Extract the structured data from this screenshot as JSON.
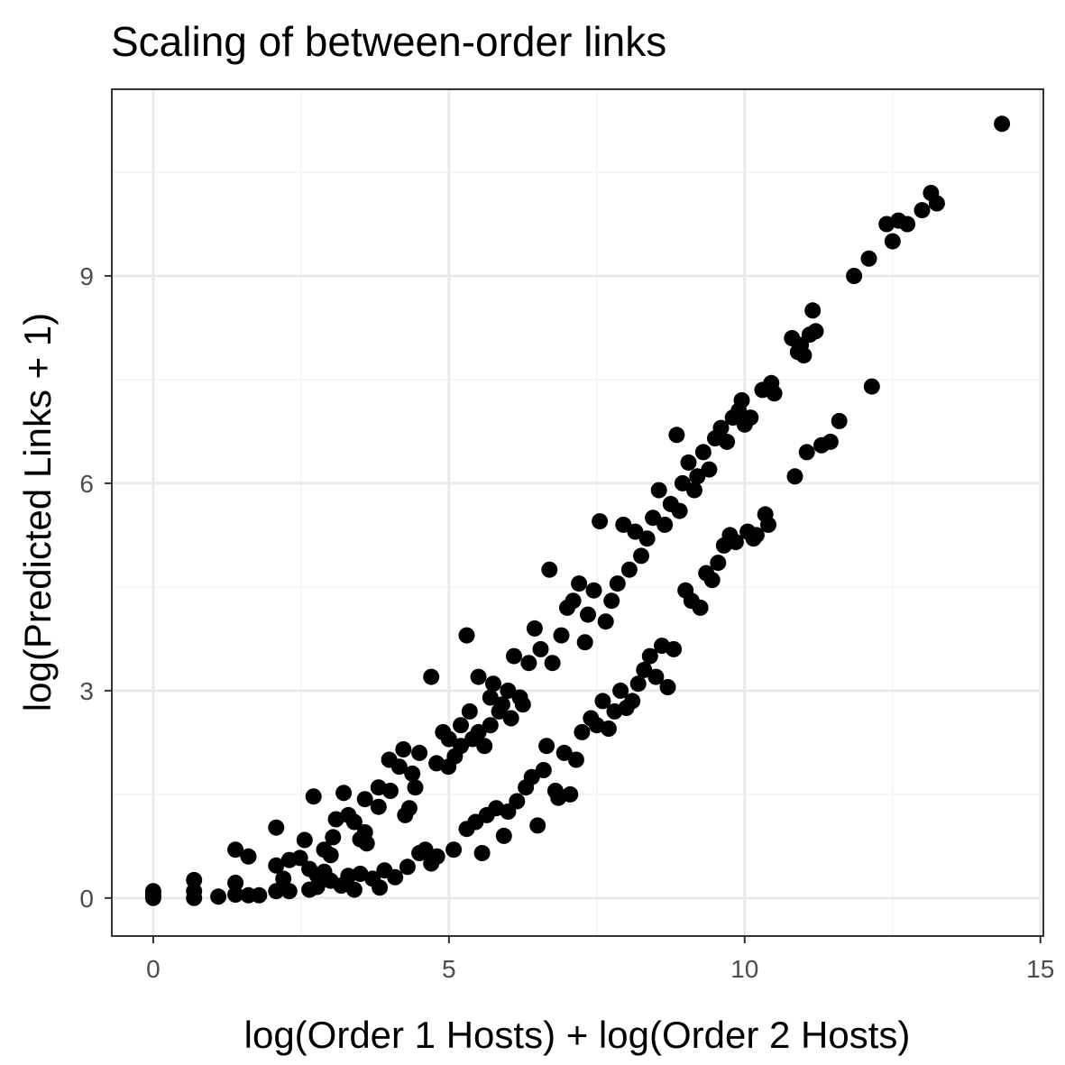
{
  "chart_data": {
    "type": "scatter",
    "title": "Scaling of between-order links",
    "xlabel": "log(Order 1 Hosts) + log(Order 2 Hosts)",
    "ylabel": "log(Predicted Links + 1)",
    "xlim": [
      -0.7,
      15.05
    ],
    "ylim": [
      -0.55,
      11.7
    ],
    "x_ticks": [
      0,
      5,
      10,
      15
    ],
    "x_tick_labels": [
      "0",
      "5",
      "10",
      "15"
    ],
    "y_ticks": [
      0,
      3,
      6,
      9
    ],
    "y_tick_labels": [
      "0",
      "3",
      "6",
      "9"
    ],
    "x_minor_grid": [
      2.5,
      7.5,
      12.5
    ],
    "y_minor_grid": [
      1.5,
      4.5,
      7.5,
      10.5
    ],
    "grid": true,
    "legend": "none",
    "colors": {
      "point": "#000000",
      "grid_major": "#ebebeb",
      "grid_minor": "#f5f5f5",
      "panel_border": "#333333",
      "tick_label": "#4d4d4d"
    },
    "points": [
      [
        0.0,
        0.0
      ],
      [
        0.0,
        0.1
      ],
      [
        0.0,
        0.05
      ],
      [
        0.69,
        0.0
      ],
      [
        0.69,
        0.1
      ],
      [
        0.69,
        0.26
      ],
      [
        1.1,
        0.02
      ],
      [
        1.39,
        0.05
      ],
      [
        1.39,
        0.22
      ],
      [
        1.39,
        0.7
      ],
      [
        1.61,
        0.6
      ],
      [
        1.61,
        0.04
      ],
      [
        1.79,
        0.04
      ],
      [
        2.08,
        0.1
      ],
      [
        2.08,
        0.47
      ],
      [
        2.08,
        1.02
      ],
      [
        2.2,
        0.28
      ],
      [
        2.3,
        0.55
      ],
      [
        2.3,
        0.1
      ],
      [
        2.48,
        0.58
      ],
      [
        2.56,
        0.84
      ],
      [
        2.64,
        0.42
      ],
      [
        2.64,
        0.12
      ],
      [
        2.71,
        1.47
      ],
      [
        2.77,
        0.16
      ],
      [
        2.77,
        0.33
      ],
      [
        2.89,
        0.7
      ],
      [
        2.89,
        0.38
      ],
      [
        3.0,
        0.62
      ],
      [
        3.0,
        0.25
      ],
      [
        3.04,
        0.88
      ],
      [
        3.09,
        1.14
      ],
      [
        3.18,
        0.18
      ],
      [
        3.22,
        1.52
      ],
      [
        3.3,
        1.2
      ],
      [
        3.3,
        0.32
      ],
      [
        3.4,
        1.1
      ],
      [
        3.4,
        0.12
      ],
      [
        3.5,
        0.85
      ],
      [
        3.5,
        0.35
      ],
      [
        3.58,
        1.43
      ],
      [
        3.58,
        0.95
      ],
      [
        3.61,
        0.79
      ],
      [
        3.71,
        0.28
      ],
      [
        3.81,
        1.32
      ],
      [
        3.81,
        1.6
      ],
      [
        3.83,
        0.15
      ],
      [
        3.91,
        0.4
      ],
      [
        3.99,
        2.0
      ],
      [
        4.01,
        1.55
      ],
      [
        4.09,
        0.3
      ],
      [
        4.16,
        1.9
      ],
      [
        4.23,
        2.15
      ],
      [
        4.26,
        1.2
      ],
      [
        4.3,
        0.45
      ],
      [
        4.33,
        1.3
      ],
      [
        4.38,
        1.8
      ],
      [
        4.43,
        1.6
      ],
      [
        4.5,
        2.1
      ],
      [
        4.5,
        0.65
      ],
      [
        4.6,
        0.7
      ],
      [
        4.7,
        3.2
      ],
      [
        4.7,
        0.5
      ],
      [
        4.79,
        1.95
      ],
      [
        4.8,
        0.6
      ],
      [
        4.9,
        2.4
      ],
      [
        4.99,
        1.9
      ],
      [
        5.0,
        2.3
      ],
      [
        5.08,
        0.7
      ],
      [
        5.1,
        2.05
      ],
      [
        5.2,
        2.5
      ],
      [
        5.2,
        2.2
      ],
      [
        5.3,
        3.8
      ],
      [
        5.3,
        1.0
      ],
      [
        5.35,
        2.7
      ],
      [
        5.4,
        2.3
      ],
      [
        5.45,
        1.1
      ],
      [
        5.5,
        3.2
      ],
      [
        5.5,
        2.4
      ],
      [
        5.56,
        0.65
      ],
      [
        5.6,
        2.2
      ],
      [
        5.64,
        1.2
      ],
      [
        5.7,
        2.9
      ],
      [
        5.7,
        2.5
      ],
      [
        5.75,
        3.1
      ],
      [
        5.8,
        1.3
      ],
      [
        5.85,
        2.7
      ],
      [
        5.9,
        2.8
      ],
      [
        5.93,
        0.9
      ],
      [
        6.0,
        3.0
      ],
      [
        6.0,
        1.25
      ],
      [
        6.05,
        2.6
      ],
      [
        6.1,
        3.5
      ],
      [
        6.15,
        1.4
      ],
      [
        6.2,
        2.9
      ],
      [
        6.25,
        2.8
      ],
      [
        6.3,
        1.6
      ],
      [
        6.35,
        3.4
      ],
      [
        6.4,
        1.75
      ],
      [
        6.45,
        3.9
      ],
      [
        6.5,
        1.05
      ],
      [
        6.55,
        3.6
      ],
      [
        6.6,
        1.85
      ],
      [
        6.65,
        2.2
      ],
      [
        6.7,
        4.75
      ],
      [
        6.75,
        3.4
      ],
      [
        6.8,
        1.55
      ],
      [
        6.85,
        1.45
      ],
      [
        6.9,
        3.8
      ],
      [
        6.95,
        2.1
      ],
      [
        7.0,
        4.2
      ],
      [
        7.05,
        1.5
      ],
      [
        7.1,
        4.3
      ],
      [
        7.15,
        2.0
      ],
      [
        7.2,
        4.55
      ],
      [
        7.25,
        2.4
      ],
      [
        7.3,
        3.7
      ],
      [
        7.35,
        4.1
      ],
      [
        7.4,
        2.6
      ],
      [
        7.45,
        4.45
      ],
      [
        7.5,
        2.5
      ],
      [
        7.55,
        5.45
      ],
      [
        7.6,
        2.85
      ],
      [
        7.65,
        4.0
      ],
      [
        7.7,
        2.45
      ],
      [
        7.75,
        4.3
      ],
      [
        7.8,
        2.7
      ],
      [
        7.85,
        4.55
      ],
      [
        7.9,
        3.0
      ],
      [
        7.95,
        5.4
      ],
      [
        8.0,
        2.75
      ],
      [
        8.05,
        4.75
      ],
      [
        8.1,
        2.85
      ],
      [
        8.15,
        5.3
      ],
      [
        8.2,
        3.1
      ],
      [
        8.25,
        4.95
      ],
      [
        8.3,
        3.3
      ],
      [
        8.35,
        5.2
      ],
      [
        8.4,
        3.5
      ],
      [
        8.45,
        5.5
      ],
      [
        8.5,
        3.2
      ],
      [
        8.55,
        5.9
      ],
      [
        8.6,
        3.65
      ],
      [
        8.65,
        5.4
      ],
      [
        8.7,
        3.05
      ],
      [
        8.75,
        5.7
      ],
      [
        8.8,
        3.6
      ],
      [
        8.85,
        6.7
      ],
      [
        8.9,
        5.6
      ],
      [
        8.95,
        6.0
      ],
      [
        9.0,
        4.45
      ],
      [
        9.05,
        6.3
      ],
      [
        9.1,
        4.3
      ],
      [
        9.15,
        5.9
      ],
      [
        9.2,
        6.1
      ],
      [
        9.25,
        4.2
      ],
      [
        9.3,
        6.45
      ],
      [
        9.35,
        4.7
      ],
      [
        9.4,
        6.2
      ],
      [
        9.45,
        4.6
      ],
      [
        9.5,
        6.65
      ],
      [
        9.55,
        4.85
      ],
      [
        9.6,
        6.8
      ],
      [
        9.65,
        5.1
      ],
      [
        9.7,
        6.6
      ],
      [
        9.75,
        5.25
      ],
      [
        9.8,
        6.95
      ],
      [
        9.85,
        5.15
      ],
      [
        9.9,
        7.05
      ],
      [
        9.95,
        7.2
      ],
      [
        10.0,
        6.85
      ],
      [
        10.05,
        5.3
      ],
      [
        10.1,
        6.95
      ],
      [
        10.15,
        5.2
      ],
      [
        10.2,
        5.25
      ],
      [
        10.3,
        7.35
      ],
      [
        10.35,
        5.55
      ],
      [
        10.4,
        5.4
      ],
      [
        10.45,
        7.45
      ],
      [
        10.5,
        7.3
      ],
      [
        10.8,
        8.1
      ],
      [
        10.85,
        6.1
      ],
      [
        10.9,
        7.9
      ],
      [
        10.95,
        8.0
      ],
      [
        11.0,
        7.85
      ],
      [
        11.05,
        6.45
      ],
      [
        11.1,
        8.15
      ],
      [
        11.15,
        8.5
      ],
      [
        11.2,
        8.2
      ],
      [
        11.3,
        6.55
      ],
      [
        11.45,
        6.6
      ],
      [
        11.6,
        6.9
      ],
      [
        11.85,
        9.0
      ],
      [
        12.1,
        9.25
      ],
      [
        12.15,
        7.4
      ],
      [
        12.4,
        9.75
      ],
      [
        12.5,
        9.5
      ],
      [
        12.6,
        9.8
      ],
      [
        12.75,
        9.75
      ],
      [
        13.0,
        9.95
      ],
      [
        13.15,
        10.2
      ],
      [
        13.25,
        10.05
      ],
      [
        14.35,
        11.2
      ]
    ]
  }
}
